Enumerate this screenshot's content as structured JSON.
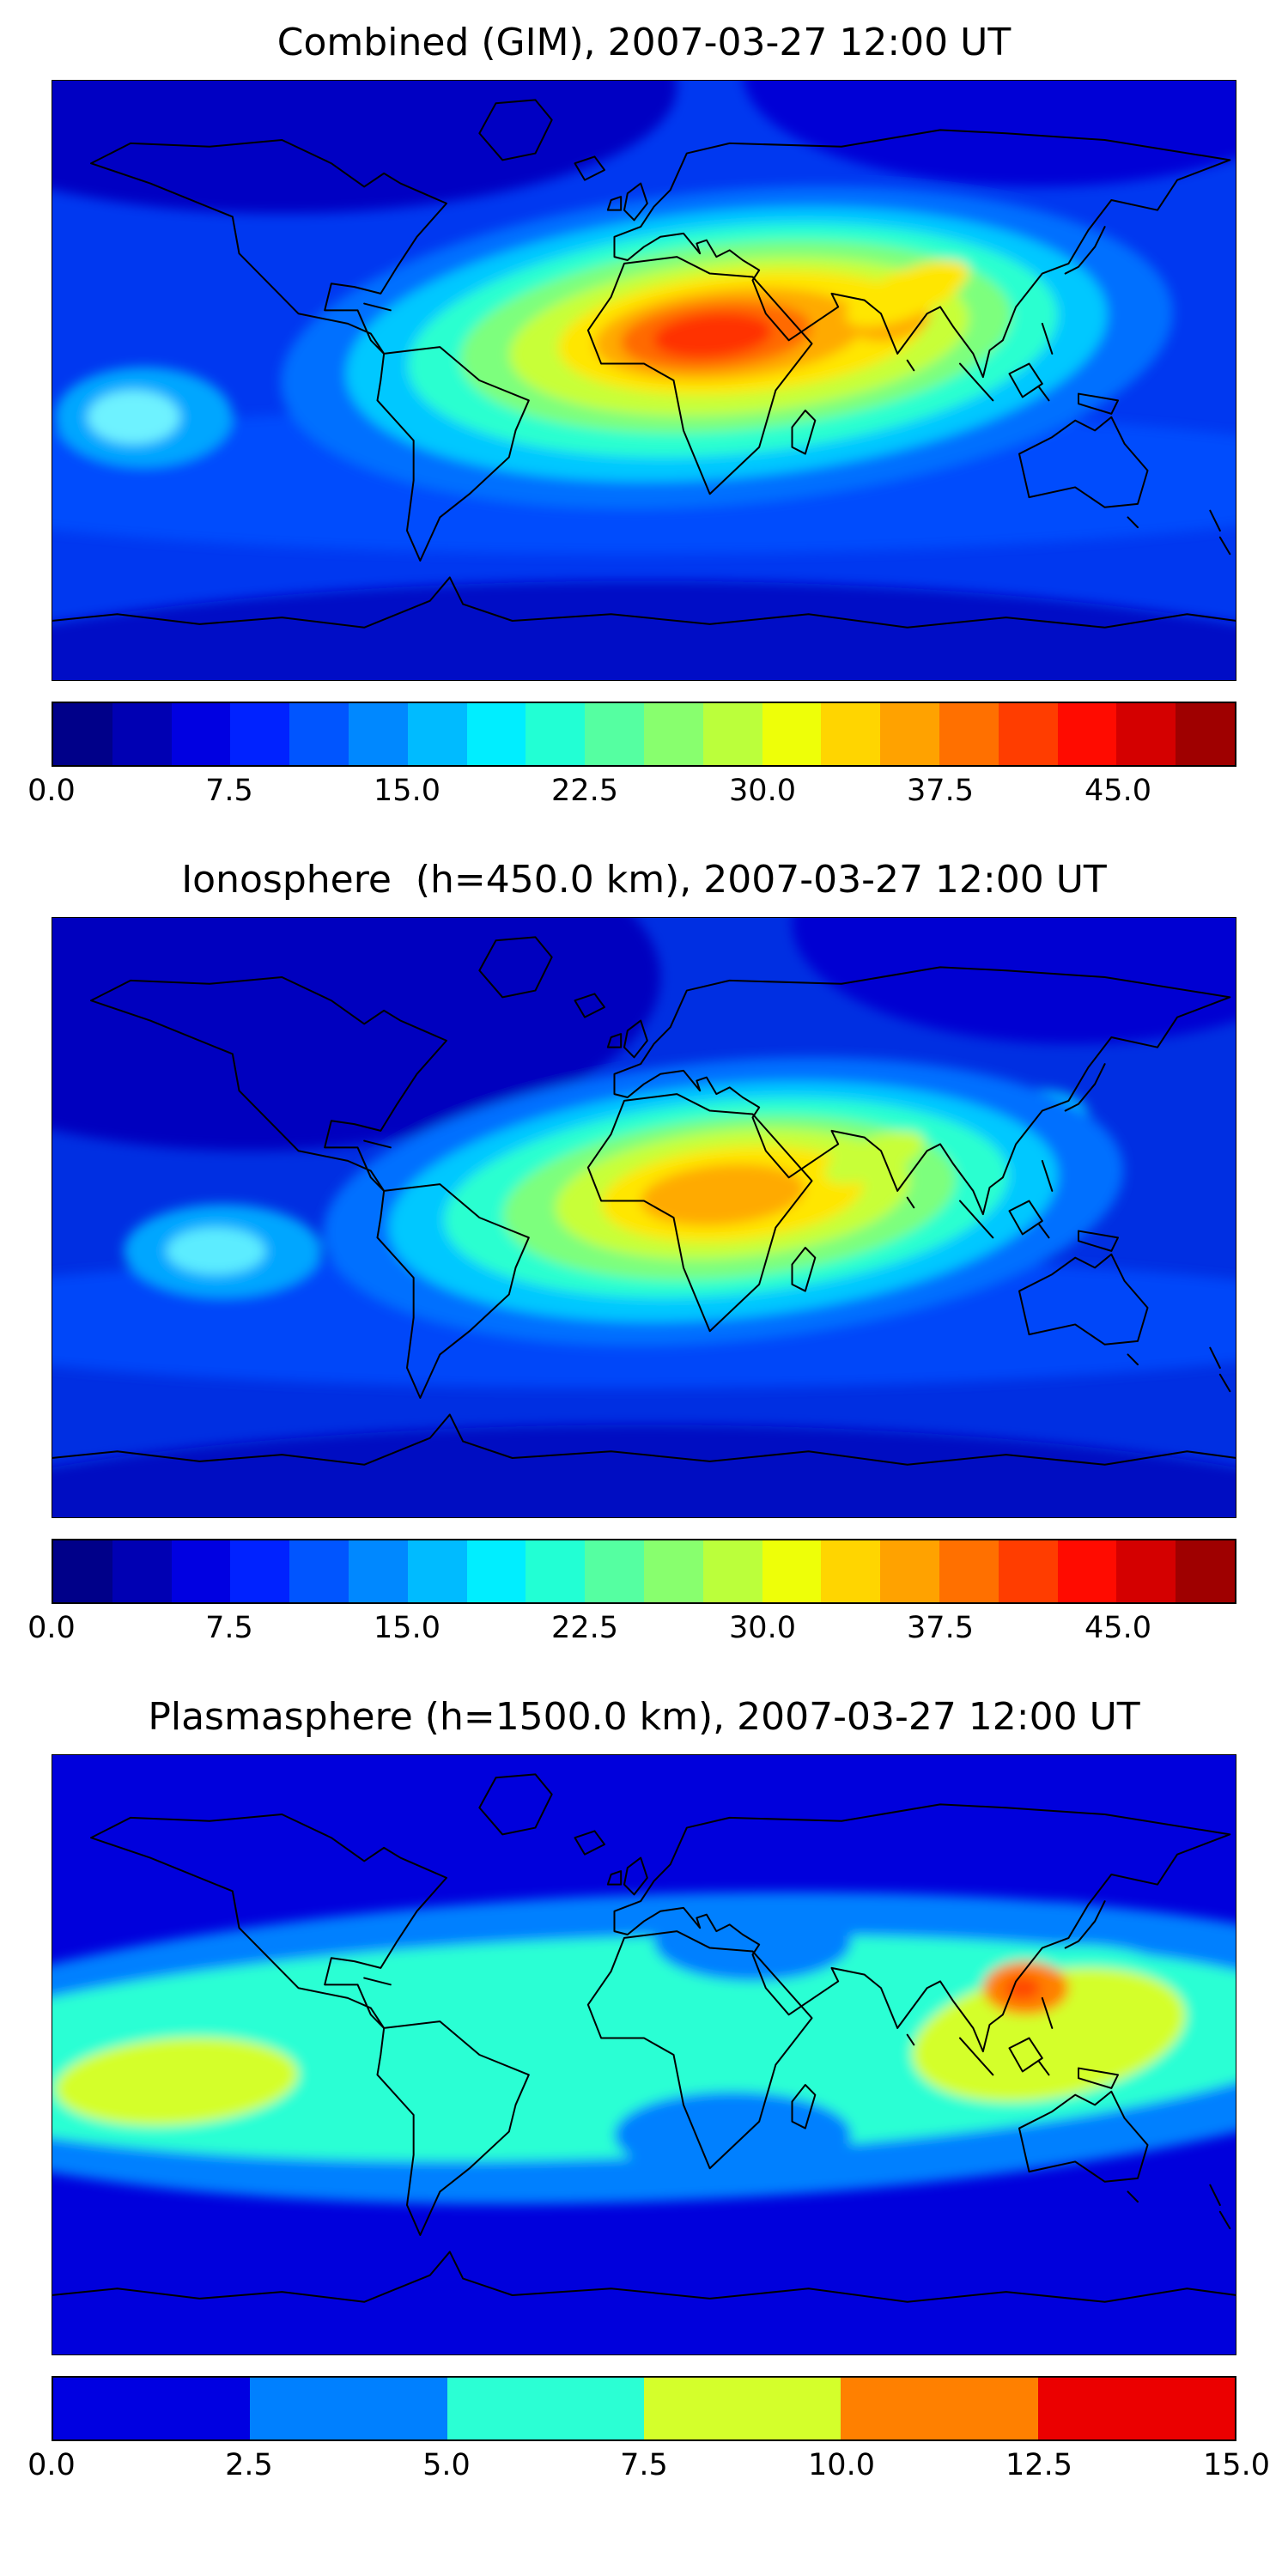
{
  "figure": {
    "background": "#ffffff"
  },
  "chart_data": [
    {
      "type": "heatmap",
      "title": "Combined (GIM), 2007-03-27 12:00 UT",
      "map": {
        "projection": "equirectangular",
        "lon_range": [
          -180,
          180
        ],
        "lat_range": [
          -90,
          90
        ],
        "coastlines": true,
        "frame": true
      },
      "colormap": "jet",
      "colorbar": {
        "orientation": "horizontal",
        "vmin": 0,
        "vmax": 50,
        "tick_values": [
          0,
          7.5,
          15,
          22.5,
          30,
          37.5,
          45
        ],
        "tick_labels": [
          "0.0",
          "7.5",
          "15.0",
          "22.5",
          "30.0",
          "37.5",
          "45.0"
        ],
        "segment_colors": [
          "#000089",
          "#0000b3",
          "#0000e1",
          "#0022ff",
          "#0055ff",
          "#0088ff",
          "#00bbff",
          "#00eeff",
          "#22ffd4",
          "#55ffa1",
          "#88ff6e",
          "#bbff3b",
          "#eeff08",
          "#ffd500",
          "#ffa200",
          "#ff7000",
          "#ff3d00",
          "#ff0b00",
          "#d40000",
          "#9f0000"
        ]
      },
      "readings": [
        {
          "lon": 35,
          "lat": 12,
          "value": 47
        },
        {
          "lon": 10,
          "lat": 10,
          "value": 40
        },
        {
          "lon": 80,
          "lat": 18,
          "value": 35
        },
        {
          "lon": 110,
          "lat": 28,
          "value": 28
        },
        {
          "lon": -170,
          "lat": -12,
          "value": 20
        },
        {
          "lon": -100,
          "lat": 45,
          "value": 8
        },
        {
          "lon": 0,
          "lat": 75,
          "value": 4
        },
        {
          "lon": 0,
          "lat": -75,
          "value": 5
        }
      ]
    },
    {
      "type": "heatmap",
      "title": "Ionosphere  (h=450.0 km), 2007-03-27 12:00 UT",
      "map": {
        "projection": "equirectangular",
        "lon_range": [
          -180,
          180
        ],
        "lat_range": [
          -90,
          90
        ],
        "coastlines": true,
        "frame": true
      },
      "colormap": "jet",
      "colorbar": {
        "orientation": "horizontal",
        "vmin": 0,
        "vmax": 50,
        "tick_values": [
          0,
          7.5,
          15,
          22.5,
          30,
          37.5,
          45
        ],
        "tick_labels": [
          "0.0",
          "7.5",
          "15.0",
          "22.5",
          "30.0",
          "37.5",
          "45.0"
        ],
        "segment_colors": [
          "#000089",
          "#0000b3",
          "#0000e1",
          "#0022ff",
          "#0055ff",
          "#0088ff",
          "#00bbff",
          "#00eeff",
          "#22ffd4",
          "#55ffa1",
          "#88ff6e",
          "#bbff3b",
          "#eeff08",
          "#ffd500",
          "#ffa200",
          "#ff7000",
          "#ff3d00",
          "#ff0b00",
          "#d40000",
          "#9f0000"
        ]
      },
      "readings": [
        {
          "lon": 25,
          "lat": 5,
          "value": 37
        },
        {
          "lon": 0,
          "lat": 2,
          "value": 30
        },
        {
          "lon": 55,
          "lat": 10,
          "value": 32
        },
        {
          "lon": -170,
          "lat": -10,
          "value": 17
        },
        {
          "lon": -120,
          "lat": 45,
          "value": 4
        },
        {
          "lon": 0,
          "lat": -75,
          "value": 5
        }
      ]
    },
    {
      "type": "heatmap",
      "title": "Plasmasphere (h=1500.0 km), 2007-03-27 12:00 UT",
      "map": {
        "projection": "equirectangular",
        "lon_range": [
          -180,
          180
        ],
        "lat_range": [
          -90,
          90
        ],
        "coastlines": true,
        "frame": true
      },
      "colormap": "jet",
      "colorbar": {
        "orientation": "horizontal",
        "vmin": 0,
        "vmax": 15,
        "tick_values": [
          0,
          2.5,
          5,
          7.5,
          10,
          12.5,
          15
        ],
        "tick_labels": [
          "0.0",
          "2.5",
          "5.0",
          "7.5",
          "10.0",
          "12.5",
          "15.0"
        ],
        "segment_colors": [
          "#0000e1",
          "#0080ff",
          "#2bffd4",
          "#d4ff2b",
          "#ff8000",
          "#eb0000"
        ]
      },
      "readings": [
        {
          "lon": 115,
          "lat": 20,
          "value": 12.5
        },
        {
          "lon": 120,
          "lat": 0,
          "value": 10
        },
        {
          "lon": -150,
          "lat": -8,
          "value": 10
        },
        {
          "lon": 0,
          "lat": 0,
          "value": 6
        },
        {
          "lon": 0,
          "lat": 45,
          "value": 3
        },
        {
          "lon": 0,
          "lat": 75,
          "value": 2
        },
        {
          "lon": 0,
          "lat": -75,
          "value": 2
        }
      ]
    }
  ]
}
